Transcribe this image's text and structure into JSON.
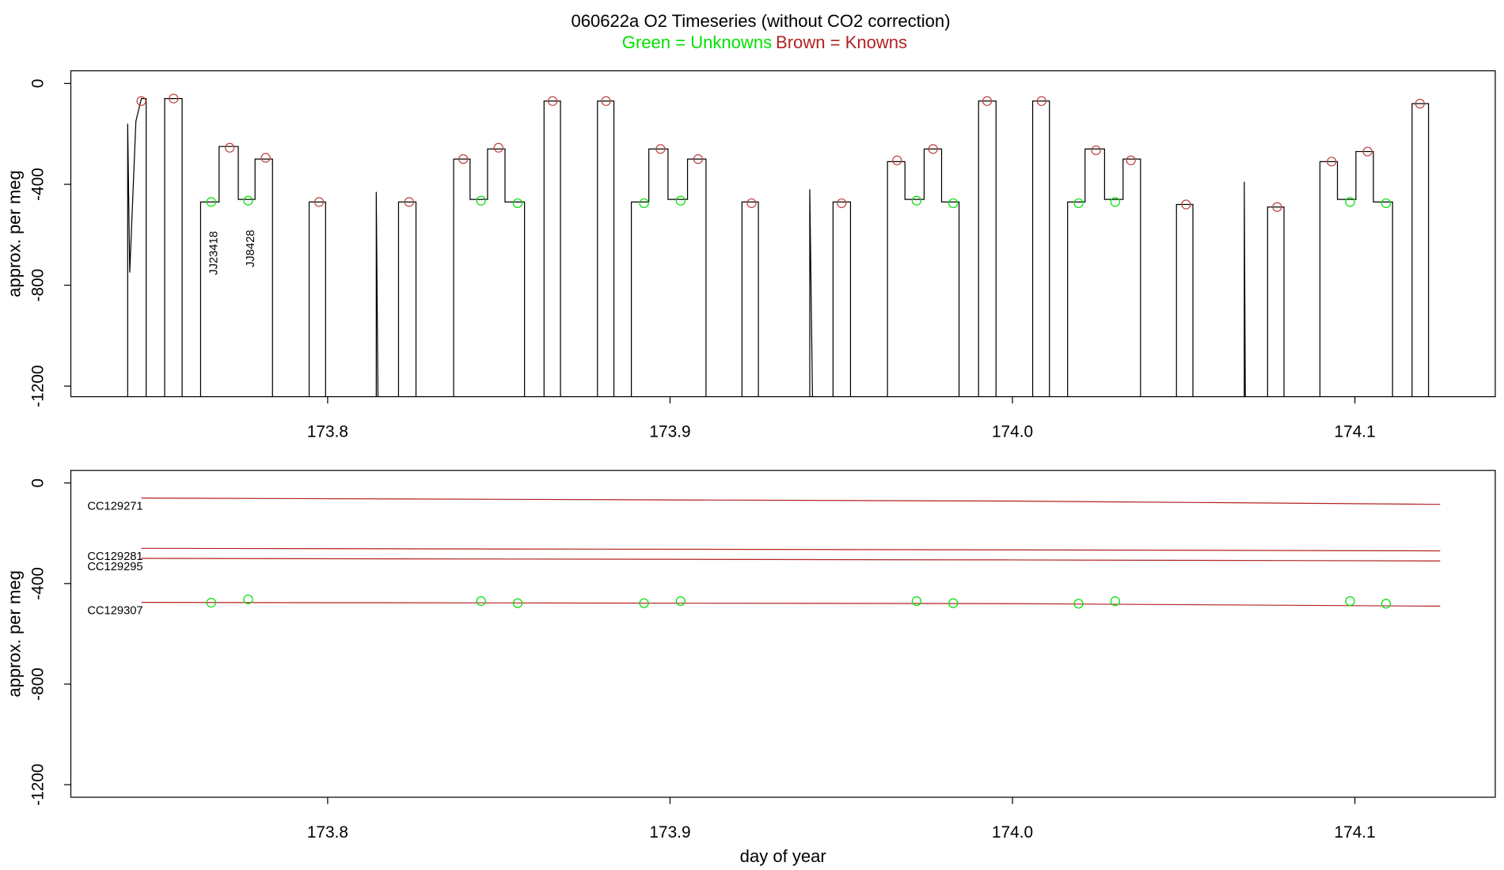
{
  "chart_data": [
    {
      "type": "line",
      "title": "060622a   O2 Timeseries (without CO2 correction)",
      "subtitle": [
        {
          "text": "Green = Unknowns",
          "color": "#00e000"
        },
        {
          "text": "Brown = Knowns",
          "color": "#b22222"
        }
      ],
      "ylabel": "approx. per meg",
      "xlim": [
        173.725,
        174.141
      ],
      "ylim": [
        -1242,
        50
      ],
      "xticks": [
        173.8,
        173.9,
        {
          "value": 174,
          "label": "174.0"
        },
        174.1
      ],
      "yticks": [
        0,
        -400,
        -800,
        -1200
      ],
      "series": [
        {
          "type": "line",
          "color": "#000000",
          "x": [
            173.7416,
            173.7416,
            173.7422,
            173.744,
            173.7456,
            173.747,
            173.747,
            173.7524,
            173.7524,
            173.7575,
            173.7575,
            173.7629,
            173.7629,
            173.7683,
            173.7683,
            173.7739,
            173.7739,
            173.7788,
            173.7788,
            173.7839,
            173.7839,
            173.7946,
            173.7946,
            173.7994,
            173.7994,
            173.8142,
            173.8142,
            173.8147,
            173.8207,
            173.8207,
            173.8258,
            173.8258,
            173.8368,
            173.8368,
            173.8416,
            173.8416,
            173.8467,
            173.8467,
            173.8518,
            173.8518,
            173.8575,
            173.8575,
            173.8632,
            173.8632,
            173.868,
            173.868,
            173.8788,
            173.8788,
            173.8836,
            173.8836,
            173.8887,
            173.8887,
            173.8938,
            173.8938,
            173.8994,
            173.8994,
            173.9051,
            173.9051,
            173.9105,
            173.9105,
            173.921,
            173.921,
            173.9258,
            173.9258,
            173.9408,
            173.9408,
            173.9416,
            173.9476,
            173.9476,
            173.9527,
            173.9527,
            173.9635,
            173.9635,
            173.9686,
            173.9686,
            173.9742,
            173.9742,
            173.9793,
            173.9793,
            173.9844,
            173.9844,
            173.9901,
            173.9901,
            173.9952,
            173.9952,
            174.0059,
            174.0059,
            174.0108,
            174.0108,
            174.0161,
            174.0161,
            174.0212,
            174.0212,
            174.0269,
            174.0269,
            174.0323,
            174.0323,
            174.0374,
            174.0374,
            174.0479,
            174.0479,
            174.0527,
            174.0527,
            174.0677,
            174.0677,
            174.068,
            174.0745,
            174.0745,
            174.0793,
            174.0793,
            174.0898,
            174.0898,
            174.0949,
            174.0949,
            174.1003,
            174.1003,
            174.1054,
            174.1054,
            174.111,
            174.111,
            174.1167,
            174.1167,
            174.1215,
            174.1215
          ],
          "values": [
            -1250,
            -160,
            -750,
            -150,
            -60,
            -60,
            -1250,
            -1250,
            -60,
            -60,
            -1250,
            -1250,
            -470,
            -470,
            -250,
            -250,
            -460,
            -460,
            -300,
            -300,
            -1250,
            -1250,
            -470,
            -470,
            -1250,
            -1250,
            -430,
            -1250,
            -1250,
            -470,
            -470,
            -1250,
            -1250,
            -300,
            -300,
            -460,
            -460,
            -260,
            -260,
            -470,
            -470,
            -1250,
            -1250,
            -70,
            -70,
            -1250,
            -1250,
            -70,
            -70,
            -1250,
            -1250,
            -470,
            -470,
            -260,
            -260,
            -460,
            -460,
            -300,
            -300,
            -1250,
            -1250,
            -470,
            -470,
            -1250,
            -1250,
            -420,
            -1250,
            -1250,
            -470,
            -470,
            -1250,
            -1250,
            -310,
            -310,
            -460,
            -460,
            -260,
            -260,
            -470,
            -470,
            -1250,
            -1250,
            -70,
            -70,
            -1250,
            -1250,
            -70,
            -70,
            -1250,
            -1250,
            -470,
            -470,
            -260,
            -260,
            -460,
            -460,
            -300,
            -300,
            -1250,
            -1250,
            -480,
            -480,
            -1250,
            -1250,
            -390,
            -1250,
            -1250,
            -490,
            -490,
            -1250,
            -1250,
            -310,
            -310,
            -460,
            -460,
            -270,
            -270,
            -470,
            -470,
            -1250,
            -1250,
            -80,
            -80,
            -1250
          ]
        },
        {
          "type": "scatter",
          "color": "#c04040",
          "x": [
            173.7456,
            173.755,
            173.7714,
            173.7819,
            173.7975,
            173.8238,
            173.8396,
            173.8499,
            173.8657,
            173.8813,
            173.8972,
            173.9082,
            173.9238,
            173.9501,
            173.9663,
            173.9768,
            173.9926,
            174.0085,
            174.0244,
            174.0346,
            174.0507,
            174.0773,
            174.0932,
            174.1037,
            174.119
          ],
          "values": [
            -70,
            -60,
            -255,
            -295,
            -470,
            -470,
            -300,
            -255,
            -70,
            -70,
            -260,
            -300,
            -475,
            -475,
            -305,
            -260,
            -70,
            -70,
            -265,
            -305,
            -480,
            -490,
            -310,
            -270,
            -80
          ]
        },
        {
          "type": "scatter",
          "color": "#00e000",
          "x": [
            173.766,
            173.7768,
            173.8448,
            173.8555,
            173.8924,
            173.9031,
            173.972,
            173.9827,
            174.0193,
            174.03,
            174.0986,
            174.1091
          ],
          "values": [
            -470,
            -465,
            -465,
            -475,
            -475,
            -465,
            -465,
            -475,
            -475,
            -470,
            -470,
            -475
          ],
          "point_labels": [
            "JJ23418",
            "JJ8428",
            null,
            null,
            null,
            null,
            null,
            null,
            null,
            null,
            null,
            null
          ]
        }
      ]
    },
    {
      "type": "line",
      "ylabel": "approx. per meg",
      "xlabel": "day of year",
      "xlim": [
        173.725,
        174.141
      ],
      "ylim": [
        -1250,
        50
      ],
      "xticks": [
        173.8,
        173.9,
        {
          "value": 174,
          "label": "174.0"
        },
        174.1
      ],
      "yticks": [
        0,
        -400,
        -800,
        -1200
      ],
      "series": [
        {
          "type": "line",
          "name": "CC129271",
          "color": "#b22222",
          "x": [
            173.7456,
            174.0,
            174.1249
          ],
          "values": [
            -60,
            -72,
            -85
          ]
        },
        {
          "type": "line",
          "name": "CC129281",
          "color": "#b22222",
          "x": [
            173.7456,
            174.0,
            174.1249
          ],
          "values": [
            -260,
            -266,
            -270
          ]
        },
        {
          "type": "line",
          "name": "CC129295",
          "color": "#b22222",
          "x": [
            173.7456,
            174.0,
            174.1249
          ],
          "values": [
            -300,
            -306,
            -310
          ]
        },
        {
          "type": "line",
          "name": "CC129307",
          "color": "#b22222",
          "x": [
            173.7456,
            174.0,
            174.1249
          ],
          "values": [
            -475,
            -480,
            -490
          ]
        },
        {
          "type": "scatter",
          "color": "#00e000",
          "x": [
            173.766,
            173.7768,
            173.8448,
            173.8555,
            173.8924,
            173.9031,
            173.972,
            173.9827,
            174.0193,
            174.03,
            174.0986,
            174.1091
          ],
          "values": [
            -476,
            -463,
            -470,
            -478,
            -478,
            -470,
            -470,
            -478,
            -480,
            -470,
            -470,
            -480
          ]
        }
      ]
    }
  ]
}
